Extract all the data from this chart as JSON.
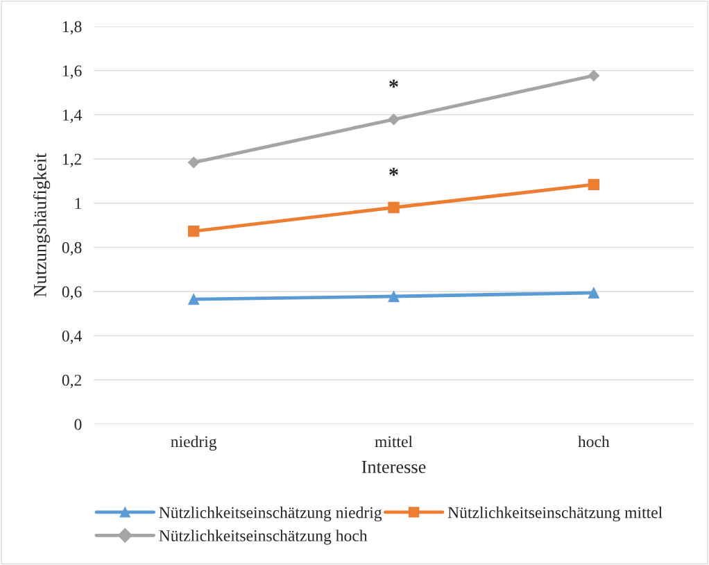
{
  "chart_data": {
    "type": "line",
    "xlabel": "Interesse",
    "ylabel": "Nutzungshäufigkeit",
    "categories": [
      "niedrig",
      "mittel",
      "hoch"
    ],
    "series": [
      {
        "name": "Nützlichkeitseinschätzung niedrig",
        "color": "#5b9bd5",
        "marker": "triangle",
        "values": [
          0.565,
          0.578,
          0.594
        ]
      },
      {
        "name": "Nützlichkeitseinschätzung mittel",
        "color": "#ed7d31",
        "marker": "square",
        "values": [
          0.873,
          0.98,
          1.084
        ]
      },
      {
        "name": "Nützlichkeitseinschätzung hoch",
        "color": "#a5a5a5",
        "marker": "diamond",
        "values": [
          1.184,
          1.379,
          1.577
        ]
      }
    ],
    "ylim": [
      0,
      1.8
    ],
    "yticks": [
      {
        "value": 0,
        "label": "0"
      },
      {
        "value": 0.2,
        "label": "0,2"
      },
      {
        "value": 0.4,
        "label": "0,4"
      },
      {
        "value": 0.6,
        "label": "0,6"
      },
      {
        "value": 0.8,
        "label": "0,8"
      },
      {
        "value": 1,
        "label": "1"
      },
      {
        "value": 1.2,
        "label": "1,2"
      },
      {
        "value": 1.4,
        "label": "1,4"
      },
      {
        "value": 1.6,
        "label": "1,6"
      },
      {
        "value": 1.8,
        "label": "1,8"
      }
    ],
    "annotations": [
      "*",
      "*"
    ],
    "grid": "y",
    "legend": "bottom",
    "line_style": "solid"
  }
}
